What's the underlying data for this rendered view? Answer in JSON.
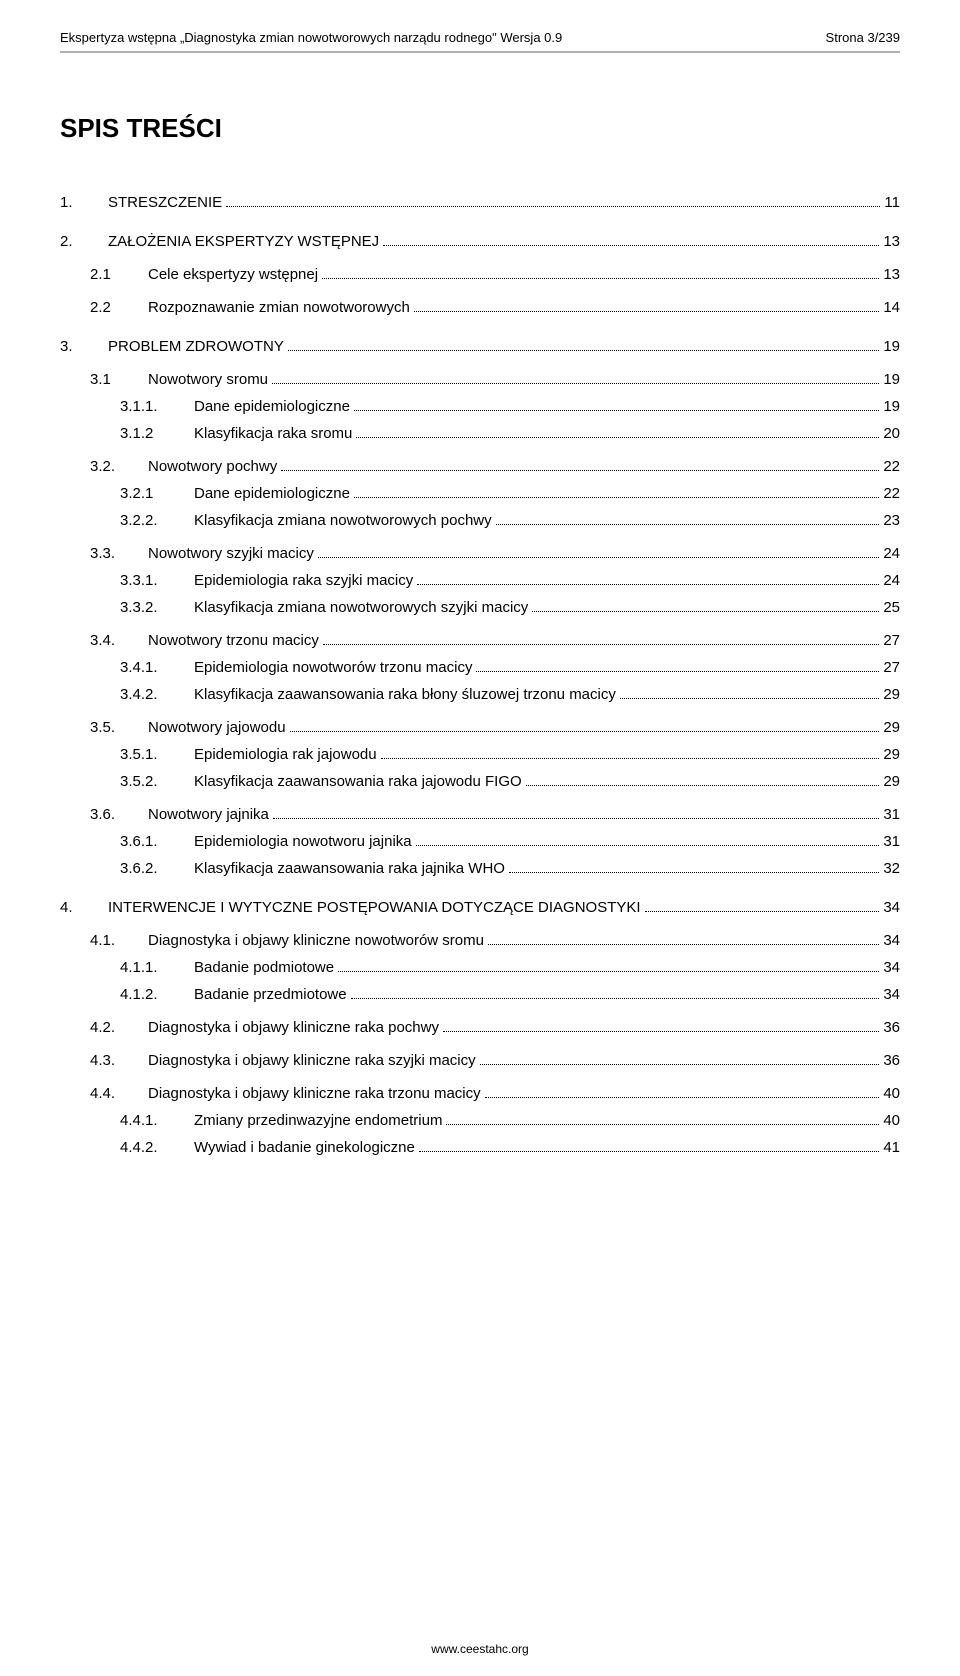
{
  "header": {
    "left": "Ekspertyza wstępna „Diagnostyka zmian nowotworowych narządu rodnego\" Wersja 0.9",
    "right": "Strona 3/239"
  },
  "title": "SPIS TREŚCI",
  "toc": [
    {
      "level": 1,
      "num": "1.",
      "label": "STRESZCZENIE",
      "page": "11"
    },
    {
      "level": 1,
      "num": "2.",
      "label": "ZAŁOŻENIA EKSPERTYZY WSTĘPNEJ",
      "page": "13"
    },
    {
      "level": 2,
      "num": "2.1",
      "label": "Cele ekspertyzy wstępnej",
      "page": "13"
    },
    {
      "level": 2,
      "num": "2.2",
      "label": "Rozpoznawanie zmian nowotworowych",
      "page": "14"
    },
    {
      "level": 1,
      "num": "3.",
      "label": "PROBLEM ZDROWOTNY",
      "page": "19"
    },
    {
      "level": 2,
      "num": "3.1",
      "label": "Nowotwory sromu",
      "page": "19"
    },
    {
      "level": 3,
      "num": "3.1.1.",
      "label": "Dane epidemiologiczne",
      "page": "19"
    },
    {
      "level": 3,
      "num": "3.1.2",
      "label": "Klasyfikacja raka sromu",
      "page": "20"
    },
    {
      "level": 2,
      "num": "3.2.",
      "label": "Nowotwory pochwy",
      "page": "22"
    },
    {
      "level": 3,
      "num": "3.2.1",
      "label": "Dane epidemiologiczne",
      "page": "22"
    },
    {
      "level": 3,
      "num": "3.2.2.",
      "label": "Klasyfikacja zmiana nowotworowych pochwy",
      "page": "23"
    },
    {
      "level": 2,
      "num": "3.3.",
      "label": "Nowotwory szyjki macicy",
      "page": "24"
    },
    {
      "level": 3,
      "num": "3.3.1.",
      "label": "Epidemiologia raka szyjki macicy",
      "page": "24"
    },
    {
      "level": 3,
      "num": "3.3.2.",
      "label": "Klasyfikacja zmiana nowotworowych szyjki macicy",
      "page": "25"
    },
    {
      "level": 2,
      "num": "3.4.",
      "label": "Nowotwory trzonu macicy",
      "page": "27"
    },
    {
      "level": 3,
      "num": "3.4.1.",
      "label": "Epidemiologia nowotworów trzonu macicy",
      "page": "27"
    },
    {
      "level": 3,
      "num": "3.4.2.",
      "label": "Klasyfikacja zaawansowania raka błony śluzowej trzonu macicy",
      "page": "29"
    },
    {
      "level": 2,
      "num": "3.5.",
      "label": "Nowotwory jajowodu",
      "page": "29"
    },
    {
      "level": 3,
      "num": "3.5.1.",
      "label": "Epidemiologia rak jajowodu",
      "page": "29"
    },
    {
      "level": 3,
      "num": "3.5.2.",
      "label": "Klasyfikacja zaawansowania raka jajowodu FIGO",
      "page": "29"
    },
    {
      "level": 2,
      "num": "3.6.",
      "label": "Nowotwory jajnika",
      "page": "31"
    },
    {
      "level": 3,
      "num": "3.6.1.",
      "label": "Epidemiologia nowotworu jajnika",
      "page": "31"
    },
    {
      "level": 3,
      "num": "3.6.2.",
      "label": "Klasyfikacja zaawansowania raka jajnika WHO",
      "page": "32"
    },
    {
      "level": 1,
      "num": "4.",
      "label": "INTERWENCJE I WYTYCZNE POSTĘPOWANIA DOTYCZĄCE DIAGNOSTYKI",
      "page": "34"
    },
    {
      "level": 2,
      "num": "4.1.",
      "label": "Diagnostyka i objawy kliniczne nowotworów sromu",
      "page": "34"
    },
    {
      "level": 3,
      "num": "4.1.1.",
      "label": "Badanie podmiotowe",
      "page": "34"
    },
    {
      "level": 3,
      "num": "4.1.2.",
      "label": "Badanie przedmiotowe",
      "page": "34"
    },
    {
      "level": 2,
      "num": "4.2.",
      "label": "Diagnostyka i objawy kliniczne raka pochwy",
      "page": "36"
    },
    {
      "level": 2,
      "num": "4.3.",
      "label": "Diagnostyka i objawy kliniczne raka szyjki macicy",
      "page": "36"
    },
    {
      "level": 2,
      "num": "4.4.",
      "label": "Diagnostyka i objawy kliniczne raka trzonu macicy",
      "page": "40"
    },
    {
      "level": 3,
      "num": "4.4.1.",
      "label": "Zmiany przedinwazyjne endometrium",
      "page": "40"
    },
    {
      "level": 3,
      "num": "4.4.2.",
      "label": "Wywiad i badanie ginekologiczne",
      "page": "41"
    }
  ],
  "footer": "www.ceestahc.org"
}
